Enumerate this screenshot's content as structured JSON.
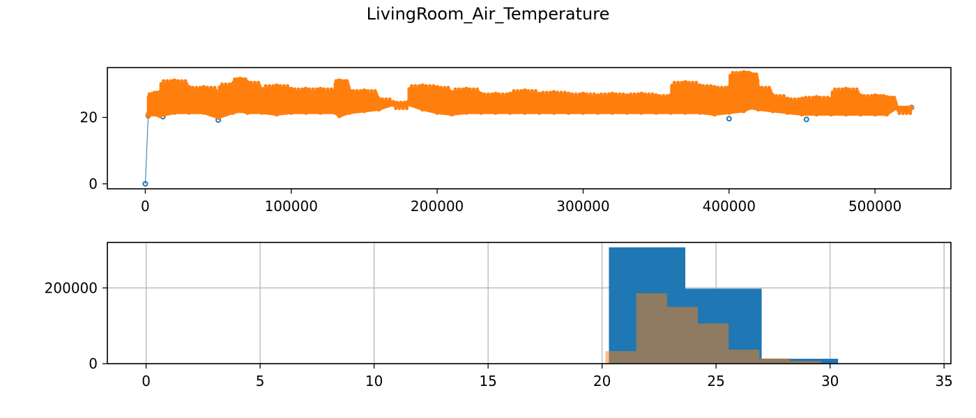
{
  "figure": {
    "title": "LivingRoom_Air_Temperature"
  },
  "colors": {
    "blue": "#1f77b4",
    "orange": "#ff7f0e",
    "overlap": "#8f7c60",
    "grid": "#b0b0b0"
  },
  "chart_data": [
    {
      "type": "line",
      "title": "",
      "xlabel": "",
      "ylabel": "",
      "xlim": [
        -26000,
        552000
      ],
      "ylim": [
        -1.5,
        35
      ],
      "xticks": [
        0,
        100000,
        200000,
        300000,
        400000,
        500000
      ],
      "xtick_labels": [
        "0",
        "100000",
        "200000",
        "300000",
        "400000",
        "500000"
      ],
      "yticks": [
        0,
        20
      ],
      "ytick_labels": [
        "0",
        "20"
      ],
      "grid": false,
      "series": [
        {
          "color": "#1f77b4",
          "marker": "o",
          "x": [
            0,
            2000,
            12000,
            50000,
            400000,
            453000,
            525000
          ],
          "y": [
            0,
            20.5,
            20.2,
            19.2,
            19.6,
            19.4,
            23.0
          ]
        },
        {
          "color": "#ff7f0e",
          "marker": "o",
          "x": [
            2000,
            5000,
            10000,
            20000,
            30000,
            40000,
            50000,
            60000,
            65000,
            70000,
            80000,
            90000,
            100000,
            110000,
            120000,
            130000,
            133000,
            140000,
            150000,
            160000,
            170000,
            180000,
            190000,
            200000,
            210000,
            220000,
            230000,
            240000,
            250000,
            260000,
            270000,
            280000,
            290000,
            300000,
            310000,
            320000,
            330000,
            340000,
            350000,
            360000,
            370000,
            380000,
            390000,
            400000,
            410000,
            415000,
            420000,
            430000,
            440000,
            450000,
            460000,
            470000,
            480000,
            490000,
            500000,
            508000,
            515000,
            525000
          ],
          "y_low": [
            20.5,
            21.0,
            20.5,
            21.5,
            21.5,
            21.5,
            20.0,
            21.5,
            22.0,
            21.5,
            21.5,
            21.0,
            21.5,
            21.5,
            21.5,
            21.5,
            20.5,
            21.5,
            22.0,
            22.5,
            24.0,
            24.0,
            22.5,
            21.5,
            21.0,
            21.5,
            21.5,
            21.5,
            21.5,
            21.5,
            21.5,
            21.5,
            21.5,
            21.5,
            21.5,
            21.5,
            21.5,
            21.5,
            21.5,
            21.5,
            21.5,
            21.5,
            21.0,
            21.5,
            22.0,
            23.0,
            22.5,
            22.0,
            21.5,
            21.0,
            21.0,
            21.0,
            21.0,
            21.0,
            21.0,
            21.0,
            23.0,
            23.0
          ],
          "y_high": [
            21.0,
            27.0,
            27.5,
            31.0,
            29.0,
            29.0,
            26.5,
            30.0,
            31.5,
            30.5,
            27.0,
            29.5,
            28.5,
            28.5,
            28.5,
            28.0,
            31.0,
            28.0,
            28.0,
            25.5,
            24.5,
            24.5,
            29.5,
            29.0,
            27.5,
            28.5,
            27.0,
            27.0,
            27.0,
            28.0,
            27.0,
            27.5,
            27.0,
            27.0,
            26.5,
            27.0,
            26.5,
            27.0,
            26.5,
            26.5,
            30.5,
            29.5,
            29.0,
            29.0,
            33.5,
            33.0,
            29.0,
            26.5,
            25.5,
            25.5,
            26.0,
            25.5,
            28.5,
            26.5,
            26.5,
            26.0,
            23.0,
            23.0
          ]
        }
      ]
    },
    {
      "type": "bar",
      "title": "",
      "xlabel": "",
      "ylabel": "",
      "xlim": [
        -1.7,
        35.3
      ],
      "ylim": [
        0,
        320000
      ],
      "xticks": [
        0,
        5,
        10,
        15,
        20,
        25,
        30,
        35
      ],
      "xtick_labels": [
        "0",
        "5",
        "10",
        "15",
        "20",
        "25",
        "30",
        "35"
      ],
      "yticks": [
        0,
        200000
      ],
      "ytick_labels": [
        "0",
        "200000"
      ],
      "grid": true,
      "series": [
        {
          "color": "#1f77b4",
          "bins": [
            [
              20.3,
              23.65,
              307000
            ],
            [
              23.65,
              27.0,
              198000
            ],
            [
              27.0,
              30.35,
              13000
            ]
          ]
        },
        {
          "color": "#ff7f0e",
          "alpha": 0.5,
          "bins": [
            [
              20.15,
              21.5,
              33000
            ],
            [
              21.5,
              22.85,
              186000
            ],
            [
              22.85,
              24.2,
              150000
            ],
            [
              24.2,
              25.55,
              106000
            ],
            [
              25.55,
              26.9,
              37000
            ],
            [
              26.9,
              28.25,
              14000
            ],
            [
              28.25,
              29.6,
              7000
            ]
          ]
        }
      ]
    }
  ]
}
